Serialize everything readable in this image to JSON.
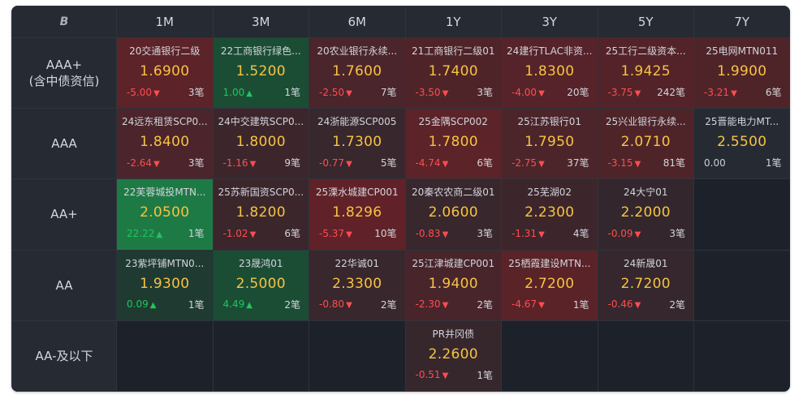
{
  "header": {
    "logo": "B",
    "columns": [
      "1M",
      "3M",
      "6M",
      "1Y",
      "3Y",
      "5Y",
      "7Y"
    ]
  },
  "rows": [
    {
      "label": "AAA+\n(含中债资信)",
      "cells": [
        {
          "name": "20交通银行二级",
          "yield": "1.6900",
          "change": "-5.00",
          "dir": "down",
          "count": "3笔",
          "bg": "#5c2328"
        },
        {
          "name": "22工商银行绿色...",
          "yield": "1.5200",
          "change": "1.00",
          "dir": "up",
          "count": "1笔",
          "bg": "#1b4d35"
        },
        {
          "name": "20农业银行永续...",
          "yield": "1.7600",
          "change": "-2.50",
          "dir": "down",
          "count": "7笔",
          "bg": "#4a252b"
        },
        {
          "name": "21工商银行二级01",
          "yield": "1.7400",
          "change": "-3.50",
          "dir": "down",
          "count": "3笔",
          "bg": "#4f2429"
        },
        {
          "name": "24建行TLAC非资...",
          "yield": "1.8300",
          "change": "-4.00",
          "dir": "down",
          "count": "20笔",
          "bg": "#552329"
        },
        {
          "name": "25工行二级资本...",
          "yield": "1.9425",
          "change": "-3.75",
          "dir": "down",
          "count": "242笔",
          "bg": "#532329"
        },
        {
          "name": "25电网MTN011",
          "yield": "1.9900",
          "change": "-3.21",
          "dir": "down",
          "count": "6笔",
          "bg": "#4f2429"
        }
      ]
    },
    {
      "label": "AAA",
      "cells": [
        {
          "name": "24远东租赁SCP0...",
          "yield": "1.8400",
          "change": "-2.64",
          "dir": "down",
          "count": "3笔",
          "bg": "#4b252b"
        },
        {
          "name": "24中交建筑SCP0...",
          "yield": "1.8000",
          "change": "-1.16",
          "dir": "down",
          "count": "9笔",
          "bg": "#3c262c"
        },
        {
          "name": "24浙能源SCP005",
          "yield": "1.7300",
          "change": "-0.77",
          "dir": "down",
          "count": "5笔",
          "bg": "#38272d"
        },
        {
          "name": "25金隅SCP002",
          "yield": "1.7800",
          "change": "-4.74",
          "dir": "down",
          "count": "6笔",
          "bg": "#5c2328"
        },
        {
          "name": "25江苏银行01",
          "yield": "1.7950",
          "change": "-2.75",
          "dir": "down",
          "count": "37笔",
          "bg": "#4c252b"
        },
        {
          "name": "25兴业银行永续...",
          "yield": "2.0710",
          "change": "-3.15",
          "dir": "down",
          "count": "81笔",
          "bg": "#4e2429"
        },
        {
          "name": "25晋能电力MT...",
          "yield": "2.5500",
          "change": "0.00",
          "dir": "flat",
          "count": "1笔",
          "bg": "#262b33"
        }
      ]
    },
    {
      "label": "AA+",
      "cells": [
        {
          "name": "22芙蓉城投MTN...",
          "yield": "2.0500",
          "change": "22.22",
          "dir": "up",
          "count": "1笔",
          "bg": "#1e7a45"
        },
        {
          "name": "25苏新国资SCP0...",
          "yield": "1.8200",
          "change": "-1.02",
          "dir": "down",
          "count": "6笔",
          "bg": "#3b262c"
        },
        {
          "name": "25溧水城建CP001",
          "yield": "1.8296",
          "change": "-5.37",
          "dir": "down",
          "count": "10笔",
          "bg": "#602228"
        },
        {
          "name": "20秦农农商二级01",
          "yield": "2.0600",
          "change": "-0.83",
          "dir": "down",
          "count": "3笔",
          "bg": "#38272d"
        },
        {
          "name": "25芜湖02",
          "yield": "2.2300",
          "change": "-1.31",
          "dir": "down",
          "count": "4笔",
          "bg": "#3c262c"
        },
        {
          "name": "24大宁01",
          "yield": "2.2000",
          "change": "-0.09",
          "dir": "down",
          "count": "3笔",
          "bg": "#33272d"
        },
        null
      ]
    },
    {
      "label": "AA",
      "cells": [
        {
          "name": "23紫坪铺MTN0...",
          "yield": "1.9300",
          "change": "0.09",
          "dir": "up",
          "count": "1笔",
          "bg": "#1f3a31"
        },
        {
          "name": "23晟鸿01",
          "yield": "2.5000",
          "change": "4.49",
          "dir": "up",
          "count": "2笔",
          "bg": "#1b4d35"
        },
        {
          "name": "22华诚01",
          "yield": "2.3300",
          "change": "-0.80",
          "dir": "down",
          "count": "2笔",
          "bg": "#38272d"
        },
        {
          "name": "25江津城建CP001",
          "yield": "1.9400",
          "change": "-2.30",
          "dir": "down",
          "count": "2笔",
          "bg": "#48252b"
        },
        {
          "name": "25栖霞建设MTN...",
          "yield": "2.7200",
          "change": "-4.67",
          "dir": "down",
          "count": "1笔",
          "bg": "#5a2328"
        },
        {
          "name": "24新晟01",
          "yield": "2.7200",
          "change": "-0.46",
          "dir": "down",
          "count": "2笔",
          "bg": "#35272d"
        },
        null
      ]
    },
    {
      "label": "AA-及以下",
      "cells": [
        null,
        null,
        null,
        {
          "name": "PR井冈债",
          "yield": "2.2600",
          "change": "-0.51",
          "dir": "down",
          "count": "1笔",
          "bg": "#36272d"
        },
        null,
        null,
        null
      ]
    }
  ]
}
